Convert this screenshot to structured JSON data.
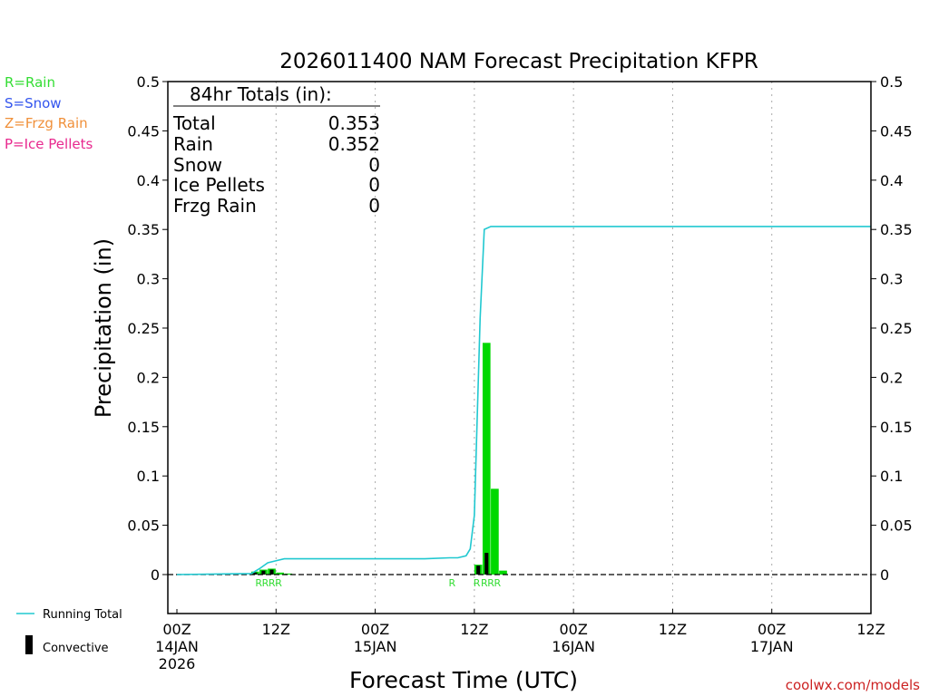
{
  "title": "2026011400 NAM Forecast Precipitation KFPR",
  "legend_left": [
    {
      "text": "R=Rain",
      "color": "#33dd33"
    },
    {
      "text": "S=Snow",
      "color": "#3355ee"
    },
    {
      "text": "Z=Frzg Rain",
      "color": "#f0903a"
    },
    {
      "text": "P=Ice Pellets",
      "color": "#e8288e"
    }
  ],
  "totals": {
    "heading": "84hr Totals (in):",
    "rows": [
      {
        "label": "Total",
        "value": "0.353"
      },
      {
        "label": "Rain",
        "value": "0.352"
      },
      {
        "label": "Snow",
        "value": "0"
      },
      {
        "label": "Ice Pellets",
        "value": "0"
      },
      {
        "label": "Frzg Rain",
        "value": "0"
      }
    ]
  },
  "legend_bottom": {
    "running_total": "Running Total",
    "convective": "Convective"
  },
  "watermark": "coolwx.com/models",
  "colors": {
    "rain": "#00d800",
    "running_total": "#20c8d0",
    "convective": "#000000",
    "grid": "#aaaaaa",
    "watermark": "#cc2222",
    "precip_label": "#33dd33"
  },
  "chart_data": {
    "type": "bar",
    "title": "2026011400 NAM Forecast Precipitation KFPR",
    "xlabel": "Forecast Time (UTC)",
    "ylabel": "Precipitation (in)",
    "xlim_hours": [
      0,
      84
    ],
    "ylim": [
      -0.04,
      0.5
    ],
    "yticks": [
      "0",
      "0.05",
      "0.1",
      "0.15",
      "0.2",
      "0.25",
      "0.3",
      "0.35",
      "0.4",
      "0.45",
      "0.5"
    ],
    "grid": "vertical dotted at 12-hour intervals",
    "x_ticks": [
      {
        "hour": 0,
        "lines": [
          "00Z",
          "14JAN",
          "2026"
        ]
      },
      {
        "hour": 12,
        "lines": [
          "12Z"
        ]
      },
      {
        "hour": 24,
        "lines": [
          "00Z",
          "15JAN"
        ]
      },
      {
        "hour": 36,
        "lines": [
          "12Z"
        ]
      },
      {
        "hour": 48,
        "lines": [
          "00Z",
          "16JAN"
        ]
      },
      {
        "hour": 60,
        "lines": [
          "12Z"
        ]
      },
      {
        "hour": 72,
        "lines": [
          "00Z",
          "17JAN"
        ]
      },
      {
        "hour": 84,
        "lines": [
          "12Z"
        ]
      }
    ],
    "series": [
      {
        "name": "Rain",
        "type": "bar",
        "hours": [
          9,
          10,
          11,
          12,
          13,
          36,
          37,
          38,
          39
        ],
        "values": [
          0.003,
          0.005,
          0.006,
          0.002,
          0.001,
          0.01,
          0.235,
          0.087,
          0.004
        ]
      },
      {
        "name": "Convective",
        "type": "bar",
        "hours": [
          9,
          10,
          11,
          36,
          37
        ],
        "values": [
          0.002,
          0.004,
          0.005,
          0.009,
          0.022
        ]
      },
      {
        "name": "Running Total",
        "type": "line",
        "hours": [
          0,
          9,
          10,
          11,
          12,
          13,
          18,
          30,
          33,
          34,
          35,
          35.5,
          36,
          36.7,
          37.2,
          38,
          39,
          84
        ],
        "values": [
          0,
          0.001,
          0.006,
          0.012,
          0.014,
          0.016,
          0.016,
          0.016,
          0.017,
          0.017,
          0.019,
          0.026,
          0.06,
          0.26,
          0.35,
          0.353,
          0.353,
          0.353
        ]
      }
    ],
    "precip_type_labels": [
      {
        "hour": 9.9,
        "text": "R"
      },
      {
        "hour": 10.7,
        "text": "R"
      },
      {
        "hour": 11.5,
        "text": "R"
      },
      {
        "hour": 12.3,
        "text": "R"
      },
      {
        "hour": 33.3,
        "text": "R"
      },
      {
        "hour": 36.3,
        "text": "R"
      },
      {
        "hour": 37.2,
        "text": "R"
      },
      {
        "hour": 38.0,
        "text": "R"
      },
      {
        "hour": 38.8,
        "text": "R"
      }
    ]
  }
}
